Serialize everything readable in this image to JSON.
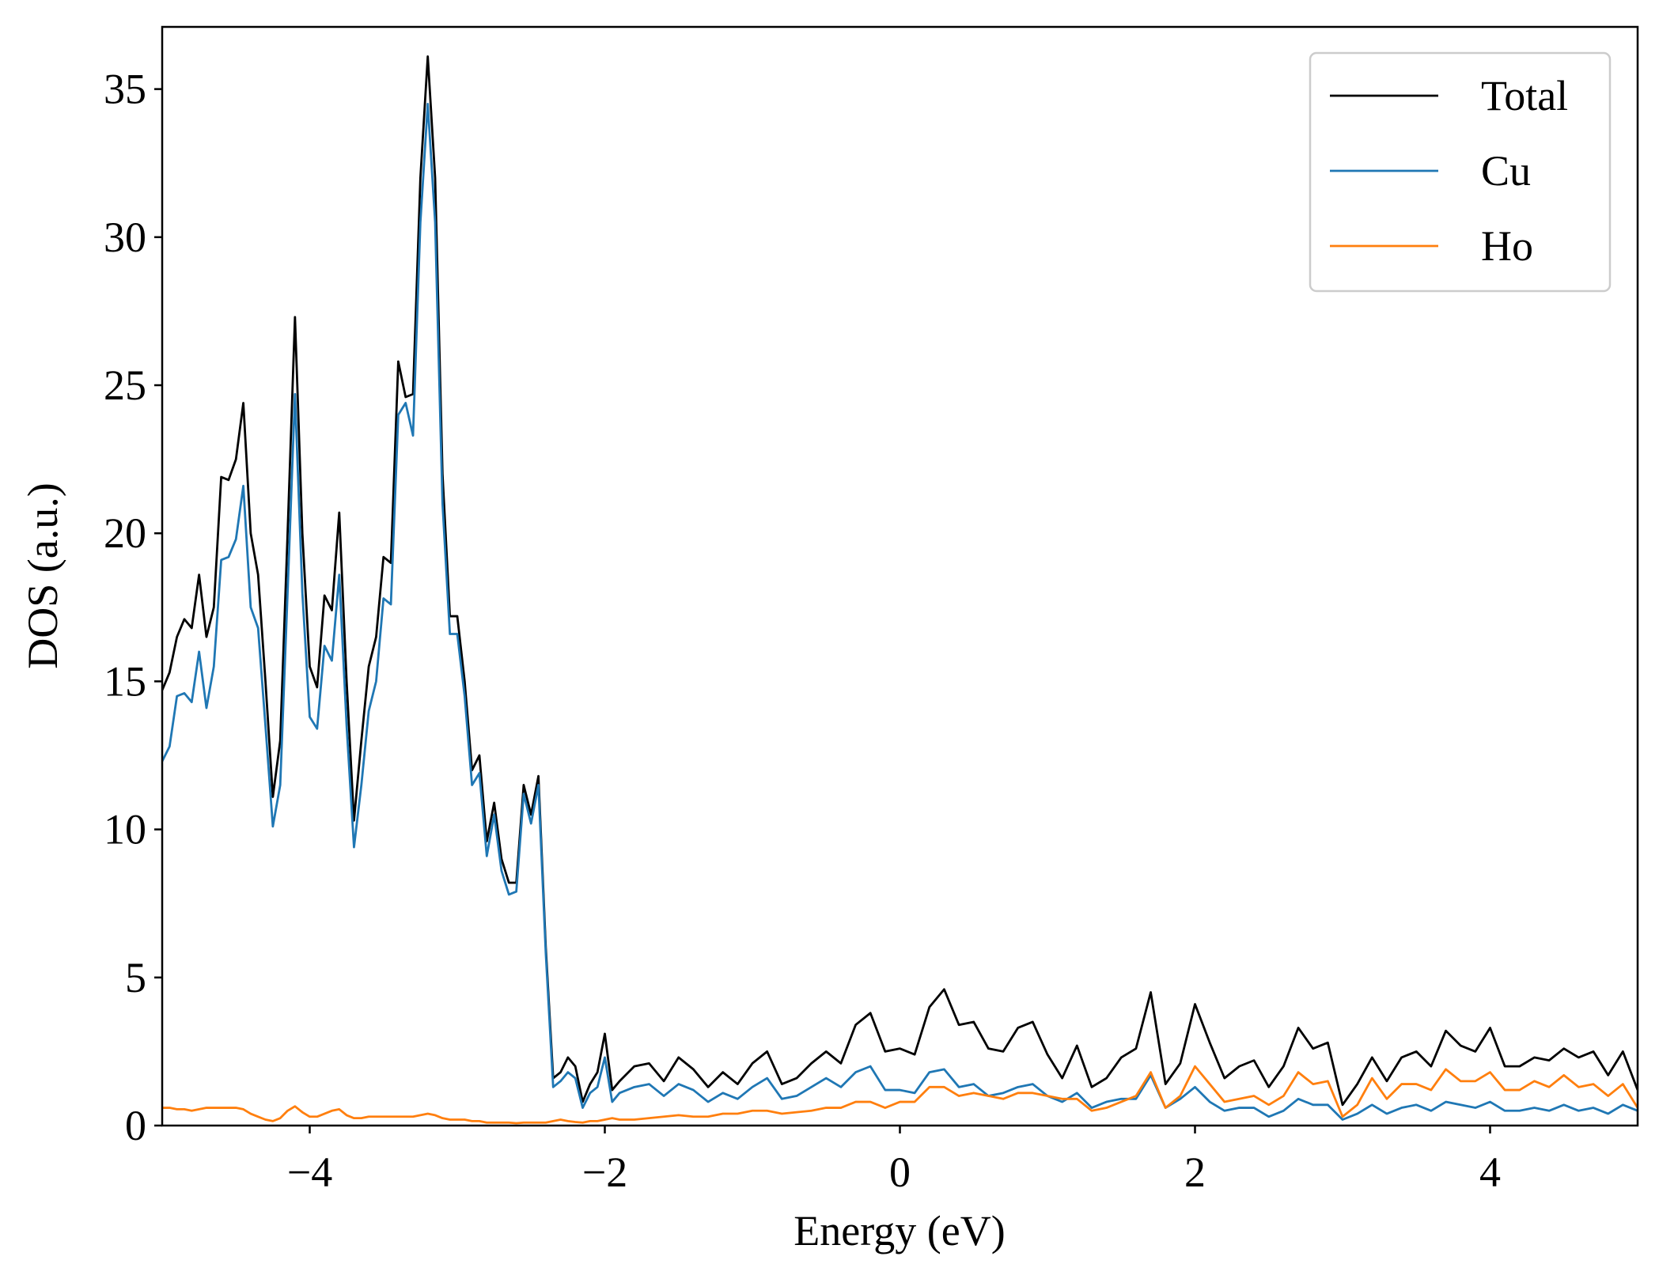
{
  "chart_data": {
    "type": "line",
    "xlabel": "Energy (eV)",
    "ylabel": "DOS (a.u.)",
    "x": [
      -5,
      -4.95,
      -4.9,
      -4.85,
      -4.8,
      -4.75,
      -4.7,
      -4.65,
      -4.6,
      -4.55,
      -4.5,
      -4.45,
      -4.4,
      -4.35,
      -4.3,
      -4.25,
      -4.2,
      -4.15,
      -4.1,
      -4.05,
      -4,
      -3.95,
      -3.9,
      -3.85,
      -3.8,
      -3.75,
      -3.7,
      -3.65,
      -3.6,
      -3.55,
      -3.5,
      -3.45,
      -3.4,
      -3.35,
      -3.3,
      -3.25,
      -3.2,
      -3.15,
      -3.1,
      -3.05,
      -3,
      -2.95,
      -2.9,
      -2.85,
      -2.8,
      -2.75,
      -2.7,
      -2.65,
      -2.6,
      -2.55,
      -2.5,
      -2.45,
      -2.4,
      -2.35,
      -2.3,
      -2.25,
      -2.2,
      -2.15,
      -2.1,
      -2.05,
      -2,
      -1.95,
      -1.9,
      -1.8,
      -1.7,
      -1.6,
      -1.5,
      -1.4,
      -1.3,
      -1.2,
      -1.1,
      -1,
      -0.9,
      -0.8,
      -0.7,
      -0.6,
      -0.5,
      -0.4,
      -0.3,
      -0.2,
      -0.1,
      0,
      0.1,
      0.2,
      0.3,
      0.4,
      0.5,
      0.6,
      0.7,
      0.8,
      0.9,
      1,
      1.1,
      1.2,
      1.3,
      1.4,
      1.5,
      1.6,
      1.7,
      1.8,
      1.9,
      2,
      2.1,
      2.2,
      2.3,
      2.4,
      2.5,
      2.6,
      2.7,
      2.8,
      2.9,
      3,
      3.1,
      3.2,
      3.3,
      3.4,
      3.5,
      3.6,
      3.7,
      3.8,
      3.9,
      4,
      4.1,
      4.2,
      4.3,
      4.4,
      4.5,
      4.6,
      4.7,
      4.8,
      4.9,
      5
    ],
    "series": [
      {
        "name": "Total",
        "color": "#000000",
        "values": [
          14.7,
          15.3,
          16.5,
          17.1,
          16.8,
          18.6,
          16.5,
          17.5,
          21.9,
          21.8,
          22.5,
          24.4,
          20,
          18.6,
          15,
          11.1,
          13,
          20,
          27.3,
          20,
          15.5,
          14.8,
          17.9,
          17.4,
          20.7,
          15,
          10.3,
          13,
          15.5,
          16.5,
          19.2,
          19,
          25.8,
          24.6,
          24.7,
          32,
          36.1,
          32,
          22,
          17.2,
          17.2,
          15,
          12,
          12.5,
          9.6,
          10.9,
          9,
          8.2,
          8.2,
          11.5,
          10.5,
          11.8,
          6,
          1.6,
          1.8,
          2.3,
          2,
          0.8,
          1.4,
          1.8,
          3.1,
          1.2,
          1.5,
          2.0,
          2.1,
          1.5,
          2.3,
          1.9,
          1.3,
          1.8,
          1.4,
          2.1,
          2.5,
          1.4,
          1.6,
          2.1,
          2.5,
          2.1,
          3.4,
          3.8,
          2.5,
          2.6,
          2.4,
          4.0,
          4.6,
          3.4,
          3.5,
          2.6,
          2.5,
          3.3,
          3.5,
          2.4,
          1.6,
          2.7,
          1.3,
          1.6,
          2.3,
          2.6,
          4.5,
          1.4,
          2.1,
          4.1,
          2.8,
          1.6,
          2.0,
          2.2,
          1.3,
          2.0,
          3.3,
          2.6,
          2.8,
          0.7,
          1.4,
          2.3,
          1.5,
          2.3,
          2.5,
          2.0,
          3.2,
          2.7,
          2.5,
          3.3,
          2.0,
          2.0,
          2.3,
          2.2,
          2.6,
          2.3,
          2.5,
          1.7,
          2.5,
          1.2
        ]
      },
      {
        "name": "Cu",
        "color": "#1f77b4",
        "values": [
          12.3,
          12.8,
          14.5,
          14.6,
          14.3,
          16.0,
          14.1,
          15.5,
          19.1,
          19.2,
          19.8,
          21.6,
          17.5,
          16.8,
          13.5,
          10.1,
          11.5,
          18,
          24.7,
          18,
          13.8,
          13.4,
          16.2,
          15.7,
          18.6,
          13.5,
          9.4,
          11.5,
          14,
          15,
          17.8,
          17.6,
          24,
          24.4,
          23.3,
          30.5,
          34.5,
          30.5,
          21,
          16.6,
          16.6,
          14.5,
          11.5,
          11.9,
          9.1,
          10.5,
          8.6,
          7.8,
          7.9,
          11.2,
          10.2,
          11.5,
          5.8,
          1.3,
          1.5,
          1.8,
          1.6,
          0.6,
          1.1,
          1.3,
          2.3,
          0.8,
          1.1,
          1.3,
          1.4,
          1.0,
          1.4,
          1.2,
          0.8,
          1.1,
          0.9,
          1.3,
          1.6,
          0.9,
          1.0,
          1.3,
          1.6,
          1.3,
          1.8,
          2.0,
          1.2,
          1.2,
          1.1,
          1.8,
          1.9,
          1.3,
          1.4,
          1.0,
          1.1,
          1.3,
          1.4,
          1.0,
          0.8,
          1.1,
          0.6,
          0.8,
          0.9,
          0.9,
          1.7,
          0.6,
          0.9,
          1.3,
          0.8,
          0.5,
          0.6,
          0.6,
          0.3,
          0.5,
          0.9,
          0.7,
          0.7,
          0.2,
          0.4,
          0.7,
          0.4,
          0.6,
          0.7,
          0.5,
          0.8,
          0.7,
          0.6,
          0.8,
          0.5,
          0.5,
          0.6,
          0.5,
          0.7,
          0.5,
          0.6,
          0.4,
          0.7,
          0.5
        ]
      },
      {
        "name": "Ho",
        "color": "#ff7f0e",
        "values": [
          0.6,
          0.6,
          0.55,
          0.55,
          0.5,
          0.55,
          0.6,
          0.6,
          0.6,
          0.6,
          0.6,
          0.55,
          0.4,
          0.3,
          0.2,
          0.15,
          0.25,
          0.5,
          0.65,
          0.45,
          0.3,
          0.3,
          0.4,
          0.5,
          0.55,
          0.35,
          0.25,
          0.25,
          0.3,
          0.3,
          0.3,
          0.3,
          0.3,
          0.3,
          0.3,
          0.35,
          0.4,
          0.35,
          0.25,
          0.2,
          0.2,
          0.2,
          0.15,
          0.15,
          0.1,
          0.1,
          0.1,
          0.1,
          0.08,
          0.1,
          0.1,
          0.1,
          0.1,
          0.15,
          0.2,
          0.15,
          0.12,
          0.1,
          0.15,
          0.15,
          0.2,
          0.25,
          0.2,
          0.2,
          0.25,
          0.3,
          0.35,
          0.3,
          0.3,
          0.4,
          0.4,
          0.5,
          0.5,
          0.4,
          0.45,
          0.5,
          0.6,
          0.6,
          0.8,
          0.8,
          0.6,
          0.8,
          0.8,
          1.3,
          1.3,
          1.0,
          1.1,
          1.0,
          0.9,
          1.1,
          1.1,
          1.0,
          0.9,
          0.9,
          0.5,
          0.6,
          0.8,
          1.0,
          1.8,
          0.6,
          1.0,
          2.0,
          1.4,
          0.8,
          0.9,
          1.0,
          0.7,
          1.0,
          1.8,
          1.4,
          1.5,
          0.3,
          0.7,
          1.6,
          0.9,
          1.4,
          1.4,
          1.2,
          1.9,
          1.5,
          1.5,
          1.8,
          1.2,
          1.2,
          1.5,
          1.3,
          1.7,
          1.3,
          1.4,
          1.0,
          1.4,
          0.6
        ]
      }
    ],
    "xlim": [
      -5,
      5
    ],
    "xticks": [
      {
        "value": -4,
        "label": "−4"
      },
      {
        "value": -2,
        "label": "−2"
      },
      0,
      2,
      4
    ],
    "ylim": [
      0,
      37.1
    ],
    "yticks": [
      0,
      5,
      10,
      15,
      20,
      25,
      30,
      35
    ],
    "legend": "upper right",
    "grid": false
  }
}
